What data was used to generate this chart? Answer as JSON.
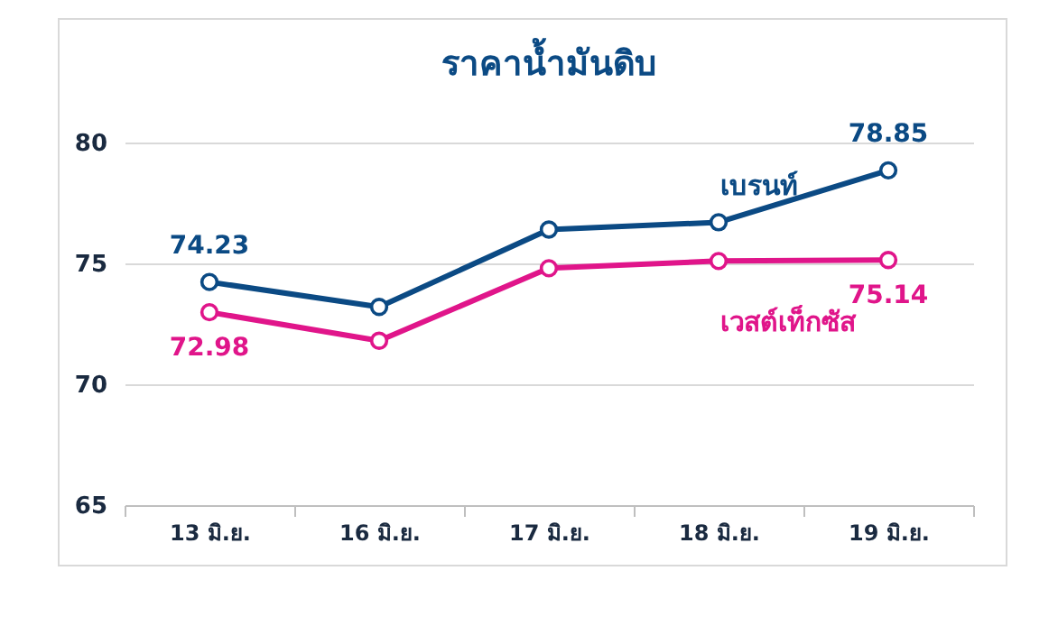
{
  "chart_data": {
    "type": "line",
    "title": "ราคาน้ำมันดิบ",
    "categories": [
      "13 มิ.ย.",
      "16 มิ.ย.",
      "17 มิ.ย.",
      "18 มิ.ย.",
      "19 มิ.ย."
    ],
    "series": [
      {
        "name": "เบรนท์",
        "color": "#0b4a84",
        "values": [
          74.23,
          73.2,
          76.4,
          76.7,
          78.85
        ],
        "value_labels": [
          "74.23",
          null,
          null,
          null,
          "78.85"
        ]
      },
      {
        "name": "เวสต์เท็กซัส",
        "color": "#e0158a",
        "values": [
          72.98,
          71.8,
          74.8,
          75.1,
          75.14
        ],
        "value_labels": [
          "72.98",
          null,
          null,
          null,
          "75.14"
        ]
      }
    ],
    "ylim": [
      65,
      80
    ],
    "yticks": [
      65,
      70,
      75,
      80
    ],
    "grid": "y",
    "marker": "circle",
    "line_style": "solid",
    "legend": false
  }
}
